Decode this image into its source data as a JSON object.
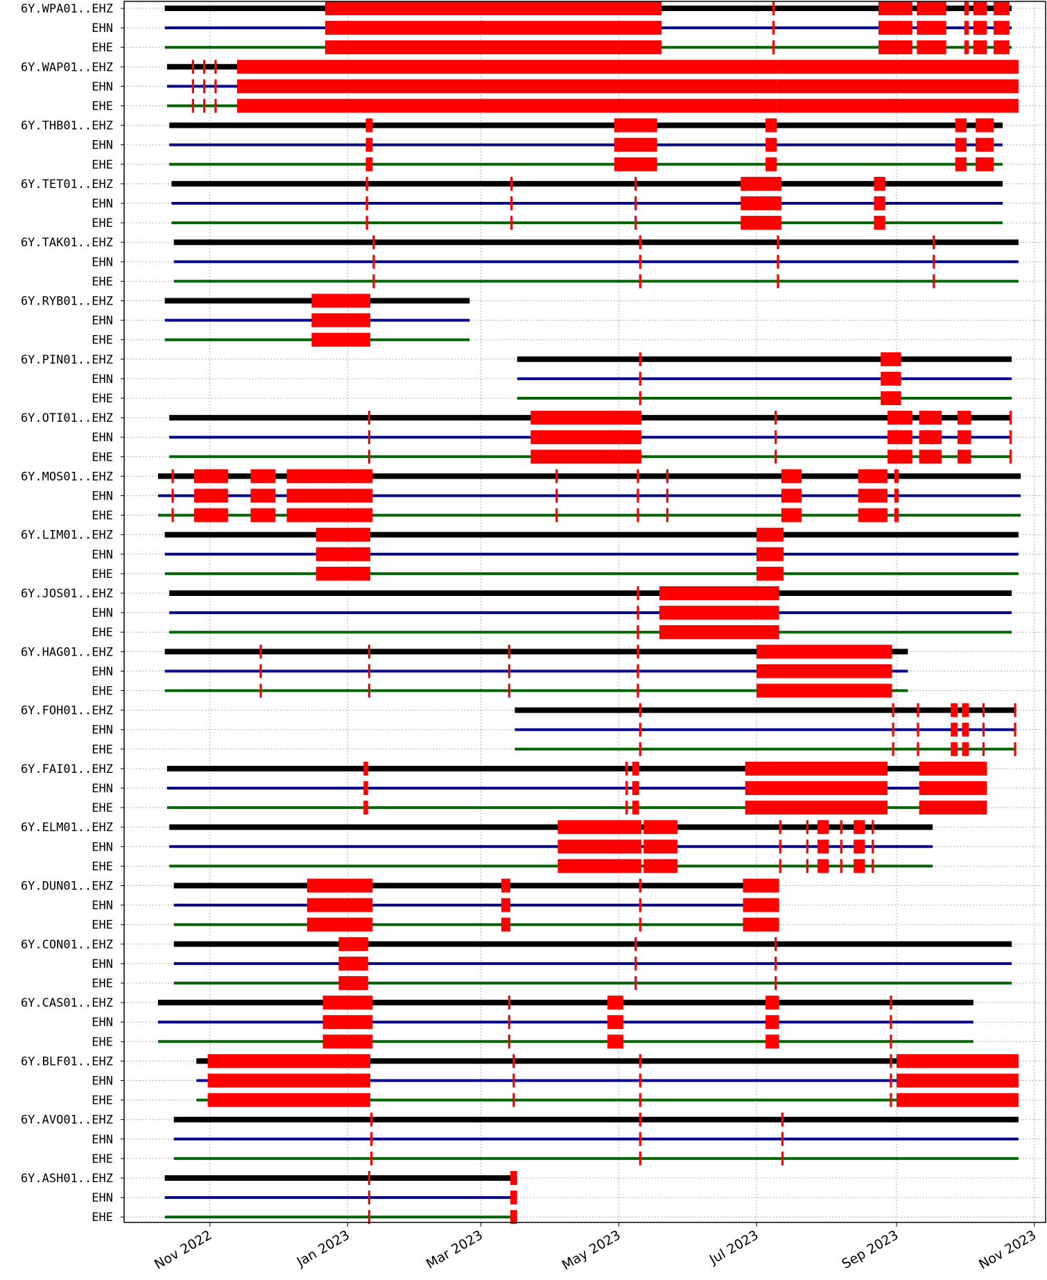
{
  "chart_data": {
    "type": "timeline",
    "grid": true,
    "x_ticks": [
      {
        "label": "Nov 2022",
        "date": "2022-11-01"
      },
      {
        "label": "Jan 2023",
        "date": "2023-01-01"
      },
      {
        "label": "Mar 2023",
        "date": "2023-03-01"
      },
      {
        "label": "May 2023",
        "date": "2023-05-01"
      },
      {
        "label": "Jul 2023",
        "date": "2023-07-01"
      },
      {
        "label": "Sep 2023",
        "date": "2023-09-01"
      },
      {
        "label": "Nov 2023",
        "date": "2023-11-01"
      }
    ],
    "xlim": [
      "2022-09-24",
      "2023-11-06"
    ],
    "channel_colors": {
      "EHZ": "#000000",
      "EHN": "#00008b",
      "EHE": "#006400"
    },
    "gap_color": "#ff0000",
    "stations": [
      {
        "name": "6Y.WPA01..EHZ",
        "start": "2022-10-12",
        "end": "2023-10-22",
        "gaps": [
          [
            "2022-12-22",
            "2023-05-20"
          ],
          [
            "2023-08-24",
            "2023-09-08"
          ],
          [
            "2023-09-10",
            "2023-09-23"
          ],
          [
            "2023-10-01",
            "2023-10-03"
          ],
          [
            "2023-10-05",
            "2023-10-11"
          ],
          [
            "2023-10-14",
            "2023-10-21"
          ],
          [
            "2023-07-08",
            "2023-07-09"
          ]
        ]
      },
      {
        "name": "6Y.WAP01..EHZ",
        "start": "2022-10-13",
        "end": "2023-10-25",
        "gaps": [
          [
            "2022-10-24",
            "2022-10-25"
          ],
          [
            "2022-10-29",
            "2022-10-30"
          ],
          [
            "2022-11-03",
            "2022-11-04"
          ],
          [
            "2022-11-13",
            "2023-07-10"
          ],
          [
            "2023-07-10",
            "2023-10-25"
          ]
        ]
      },
      {
        "name": "6Y.THB01..EHZ",
        "start": "2022-10-14",
        "end": "2023-10-18",
        "gaps": [
          [
            "2023-01-09",
            "2023-01-12"
          ],
          [
            "2023-04-29",
            "2023-05-18"
          ],
          [
            "2023-07-05",
            "2023-07-10"
          ],
          [
            "2023-09-27",
            "2023-10-02"
          ],
          [
            "2023-10-06",
            "2023-10-14"
          ]
        ]
      },
      {
        "name": "6Y.TET01..EHZ",
        "start": "2022-10-15",
        "end": "2023-10-18",
        "gaps": [
          [
            "2023-01-09",
            "2023-01-10"
          ],
          [
            "2023-03-14",
            "2023-03-15"
          ],
          [
            "2023-05-08",
            "2023-05-09"
          ],
          [
            "2023-06-24",
            "2023-07-12"
          ],
          [
            "2023-08-22",
            "2023-08-27"
          ]
        ]
      },
      {
        "name": "6Y.TAK01..EHZ",
        "start": "2022-10-16",
        "end": "2023-10-25",
        "gaps": [
          [
            "2023-01-12",
            "2023-01-13"
          ],
          [
            "2023-05-10",
            "2023-05-11"
          ],
          [
            "2023-07-10",
            "2023-07-11"
          ],
          [
            "2023-09-17",
            "2023-09-18"
          ]
        ]
      },
      {
        "name": "6Y.RYB01..EHZ",
        "start": "2022-10-12",
        "end": "2023-02-24",
        "gaps": [
          [
            "2022-12-16",
            "2023-01-11"
          ]
        ]
      },
      {
        "name": "6Y.PIN01..EHZ",
        "start": "2023-03-17",
        "end": "2023-10-22",
        "gaps": [
          [
            "2023-05-10",
            "2023-05-11"
          ],
          [
            "2023-08-25",
            "2023-09-03"
          ]
        ]
      },
      {
        "name": "6Y.OTI01..EHZ",
        "start": "2022-10-14",
        "end": "2023-10-22",
        "gaps": [
          [
            "2023-01-10",
            "2023-01-11"
          ],
          [
            "2023-03-23",
            "2023-05-11"
          ],
          [
            "2023-07-09",
            "2023-07-10"
          ],
          [
            "2023-08-28",
            "2023-09-08"
          ],
          [
            "2023-09-11",
            "2023-09-21"
          ],
          [
            "2023-09-28",
            "2023-10-04"
          ],
          [
            "2023-10-21",
            "2023-10-22"
          ]
        ]
      },
      {
        "name": "6Y.MOS01..EHZ",
        "start": "2022-10-09",
        "end": "2023-10-26",
        "gaps": [
          [
            "2022-10-15",
            "2022-10-16"
          ],
          [
            "2022-10-25",
            "2022-11-09"
          ],
          [
            "2022-11-19",
            "2022-11-30"
          ],
          [
            "2022-12-05",
            "2023-01-12"
          ],
          [
            "2023-04-03",
            "2023-04-04"
          ],
          [
            "2023-05-09",
            "2023-05-10"
          ],
          [
            "2023-05-22",
            "2023-05-23"
          ],
          [
            "2023-07-12",
            "2023-07-21"
          ],
          [
            "2023-08-15",
            "2023-08-28"
          ],
          [
            "2023-08-31",
            "2023-09-02"
          ]
        ]
      },
      {
        "name": "6Y.LIM01..EHZ",
        "start": "2022-10-12",
        "end": "2023-10-25",
        "gaps": [
          [
            "2022-12-18",
            "2023-01-11"
          ],
          [
            "2023-07-01",
            "2023-07-13"
          ]
        ]
      },
      {
        "name": "6Y.JOS01..EHZ",
        "start": "2022-10-14",
        "end": "2023-10-22",
        "gaps": [
          [
            "2023-05-09",
            "2023-05-10"
          ],
          [
            "2023-05-19",
            "2023-07-11"
          ]
        ]
      },
      {
        "name": "6Y.HAG01..EHZ",
        "start": "2022-10-12",
        "end": "2023-09-06",
        "gaps": [
          [
            "2022-11-23",
            "2022-11-24"
          ],
          [
            "2023-01-10",
            "2023-01-11"
          ],
          [
            "2023-03-13",
            "2023-03-14"
          ],
          [
            "2023-05-09",
            "2023-05-10"
          ],
          [
            "2023-07-01",
            "2023-08-30"
          ]
        ]
      },
      {
        "name": "6Y.FOH01..EHZ",
        "start": "2023-03-16",
        "end": "2023-10-24",
        "gaps": [
          [
            "2023-05-10",
            "2023-05-11"
          ],
          [
            "2023-08-30",
            "2023-08-31"
          ],
          [
            "2023-09-10",
            "2023-09-11"
          ],
          [
            "2023-09-25",
            "2023-09-28"
          ],
          [
            "2023-09-30",
            "2023-10-03"
          ],
          [
            "2023-10-09",
            "2023-10-10"
          ],
          [
            "2023-10-23",
            "2023-10-24"
          ]
        ]
      },
      {
        "name": "6Y.FAI01..EHZ",
        "start": "2022-10-13",
        "end": "2023-10-11",
        "gaps": [
          [
            "2023-01-08",
            "2023-01-10"
          ],
          [
            "2023-05-04",
            "2023-05-05"
          ],
          [
            "2023-05-07",
            "2023-05-10"
          ],
          [
            "2023-06-26",
            "2023-08-28"
          ],
          [
            "2023-09-11",
            "2023-10-11"
          ]
        ]
      },
      {
        "name": "6Y.ELM01..EHZ",
        "start": "2022-10-14",
        "end": "2023-09-17",
        "gaps": [
          [
            "2023-04-04",
            "2023-05-11"
          ],
          [
            "2023-05-12",
            "2023-05-27"
          ],
          [
            "2023-07-11",
            "2023-07-12"
          ],
          [
            "2023-07-23",
            "2023-07-24"
          ],
          [
            "2023-07-28",
            "2023-08-02"
          ],
          [
            "2023-08-07",
            "2023-08-08"
          ],
          [
            "2023-08-13",
            "2023-08-18"
          ],
          [
            "2023-08-21",
            "2023-08-22"
          ]
        ]
      },
      {
        "name": "6Y.DUN01..EHZ",
        "start": "2022-10-16",
        "end": "2023-07-11",
        "gaps": [
          [
            "2022-12-14",
            "2023-01-12"
          ],
          [
            "2023-03-10",
            "2023-03-14"
          ],
          [
            "2023-05-10",
            "2023-05-11"
          ],
          [
            "2023-06-25",
            "2023-07-11"
          ]
        ]
      },
      {
        "name": "6Y.CON01..EHZ",
        "start": "2022-10-16",
        "end": "2023-10-22",
        "gaps": [
          [
            "2022-12-28",
            "2023-01-10"
          ],
          [
            "2023-05-08",
            "2023-05-09"
          ],
          [
            "2023-07-09",
            "2023-07-10"
          ]
        ]
      },
      {
        "name": "6Y.CAS01..EHZ",
        "start": "2022-10-09",
        "end": "2023-10-05",
        "gaps": [
          [
            "2022-12-21",
            "2023-01-12"
          ],
          [
            "2023-03-13",
            "2023-03-14"
          ],
          [
            "2023-04-26",
            "2023-05-03"
          ],
          [
            "2023-07-05",
            "2023-07-11"
          ],
          [
            "2023-08-29",
            "2023-08-30"
          ]
        ]
      },
      {
        "name": "6Y.BLF01..EHZ",
        "start": "2022-10-26",
        "end": "2023-10-25",
        "gaps": [
          [
            "2022-10-31",
            "2023-01-11"
          ],
          [
            "2023-03-15",
            "2023-03-16"
          ],
          [
            "2023-05-10",
            "2023-05-11"
          ],
          [
            "2023-08-29",
            "2023-08-30"
          ],
          [
            "2023-09-01",
            "2023-10-25"
          ]
        ]
      },
      {
        "name": "6Y.AVO01..EHZ",
        "start": "2022-10-16",
        "end": "2023-10-25",
        "gaps": [
          [
            "2023-01-11",
            "2023-01-12"
          ],
          [
            "2023-05-10",
            "2023-05-11"
          ],
          [
            "2023-07-12",
            "2023-07-13"
          ]
        ]
      },
      {
        "name": "6Y.ASH01..EHZ",
        "start": "2022-10-12",
        "end": "2023-03-16",
        "gaps": [
          [
            "2023-01-10",
            "2023-01-11"
          ],
          [
            "2023-03-14",
            "2023-03-17"
          ]
        ]
      }
    ],
    "channels_suffix": [
      "EHN",
      "EHE"
    ]
  }
}
